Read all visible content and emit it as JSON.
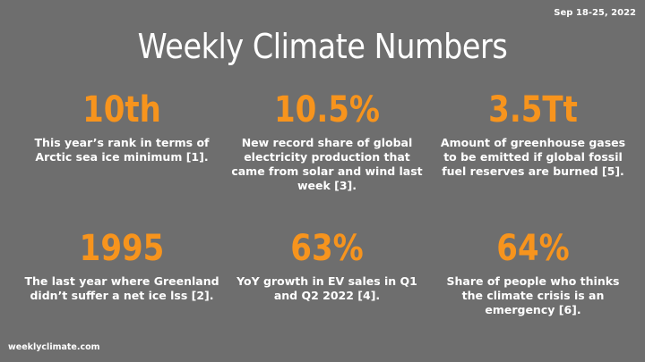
{
  "date_range": "Sep 18-25, 2022",
  "title": "Weekly Climate Numbers",
  "stats": [
    {
      "value": "10th",
      "description": "This year’s rank in terms of Arctic sea ice minimum [1]."
    },
    {
      "value": "10.5%",
      "description": "New record share of global electricity production that came from solar and wind last week [3]."
    },
    {
      "value": "3.5Tt",
      "description": "Amount of greenhouse gases to be emitted if global fossil fuel reserves are burned [5]."
    },
    {
      "value": "1995",
      "description": "The last year where Greenland didn’t suffer a net ice lss [2]."
    },
    {
      "value": "63%",
      "description": "YoY growth in EV sales in Q1 and Q2 2022 [4]."
    },
    {
      "value": "64%",
      "description": "Share of people who thinks the climate crisis is an emergency [6]."
    }
  ],
  "footer": "weeklyclimate.com",
  "colors": {
    "background": "#6e6e6e",
    "accent": "#f7941d",
    "text": "#ffffff"
  }
}
